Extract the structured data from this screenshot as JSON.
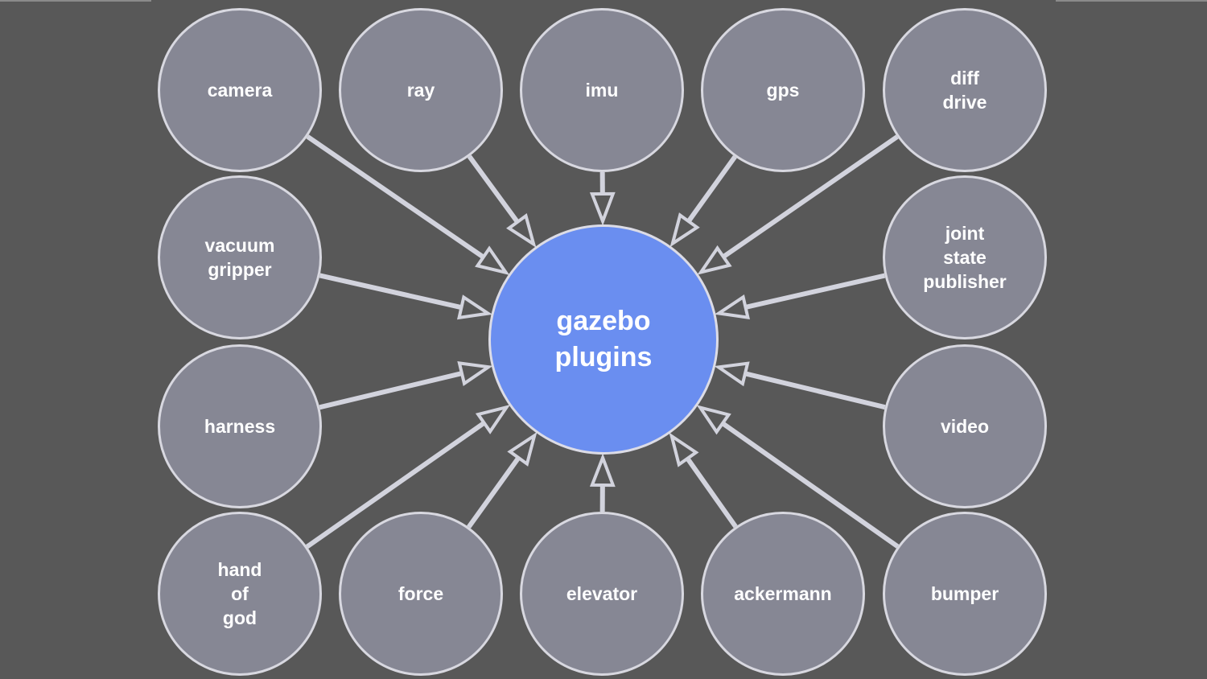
{
  "diagram": {
    "center": {
      "id": "gazebo",
      "label": "gazebo\nplugins"
    },
    "nodes": [
      {
        "id": "camera",
        "label": "camera"
      },
      {
        "id": "ray",
        "label": "ray"
      },
      {
        "id": "imu",
        "label": "imu"
      },
      {
        "id": "gps",
        "label": "gps"
      },
      {
        "id": "diff-drive",
        "label": "diff\ndrive"
      },
      {
        "id": "vacuum-gripper",
        "label": "vacuum\ngripper"
      },
      {
        "id": "joint-state-publisher",
        "label": "joint\nstate\npublisher"
      },
      {
        "id": "harness",
        "label": "harness"
      },
      {
        "id": "video",
        "label": "video"
      },
      {
        "id": "hand-of-god",
        "label": "hand\nof\ngod"
      },
      {
        "id": "force",
        "label": "force"
      },
      {
        "id": "elevator",
        "label": "elevator"
      },
      {
        "id": "ackermann",
        "label": "ackermann"
      },
      {
        "id": "bumper",
        "label": "bumper"
      }
    ],
    "edges": [
      {
        "from": "camera",
        "to": "gazebo"
      },
      {
        "from": "ray",
        "to": "gazebo"
      },
      {
        "from": "imu",
        "to": "gazebo"
      },
      {
        "from": "gps",
        "to": "gazebo"
      },
      {
        "from": "diff-drive",
        "to": "gazebo"
      },
      {
        "from": "vacuum-gripper",
        "to": "gazebo"
      },
      {
        "from": "joint-state-publisher",
        "to": "gazebo"
      },
      {
        "from": "harness",
        "to": "gazebo"
      },
      {
        "from": "video",
        "to": "gazebo"
      },
      {
        "from": "hand-of-god",
        "to": "gazebo"
      },
      {
        "from": "force",
        "to": "gazebo"
      },
      {
        "from": "elevator",
        "to": "gazebo"
      },
      {
        "from": "ackermann",
        "to": "gazebo"
      },
      {
        "from": "bumper",
        "to": "gazebo"
      }
    ]
  },
  "colors": {
    "background": "#585858",
    "node_fill": "#868794",
    "node_border": "#d8d8e0",
    "center_fill": "#6a8ef0",
    "arrow": "#d2d3dd",
    "text": "#ffffff"
  }
}
